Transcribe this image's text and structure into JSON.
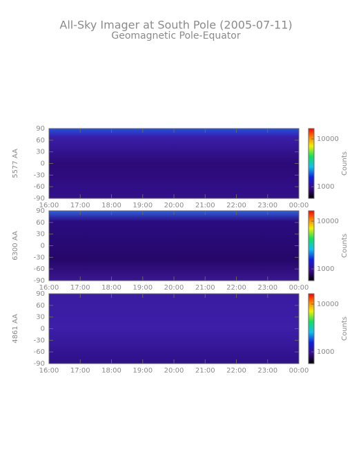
{
  "title": "All-Sky Imager at South Pole (2005-07-11)",
  "subtitle": "Geomagnetic Pole-Equator",
  "chart_data": [
    {
      "type": "heatmap",
      "ylabel": "5577 AA",
      "colorbar_label": "Counts",
      "xlim": [
        16,
        24
      ],
      "xticks": [
        {
          "value": 16,
          "label": "16:00"
        },
        {
          "value": 17,
          "label": "17:00"
        },
        {
          "value": 18,
          "label": "18:00"
        },
        {
          "value": 19,
          "label": "19:00"
        },
        {
          "value": 20,
          "label": "20:00"
        },
        {
          "value": 21,
          "label": "21:00"
        },
        {
          "value": 22,
          "label": "22:00"
        },
        {
          "value": 23,
          "label": "23:00"
        },
        {
          "value": 24,
          "label": "00:00"
        }
      ],
      "ylim": [
        -90,
        90
      ],
      "yticks": [
        -90,
        -60,
        -30,
        0,
        30,
        60,
        90
      ],
      "clim": [
        570,
        16500
      ],
      "cticks": [
        1000,
        10000
      ],
      "color_scale": "log"
    },
    {
      "type": "heatmap",
      "ylabel": "6300 AA",
      "colorbar_label": "Counts",
      "xlim": [
        16,
        24
      ],
      "xticks": [
        {
          "value": 16,
          "label": "16:00"
        },
        {
          "value": 17,
          "label": "17:00"
        },
        {
          "value": 18,
          "label": "18:00"
        },
        {
          "value": 19,
          "label": "19:00"
        },
        {
          "value": 20,
          "label": "20:00"
        },
        {
          "value": 21,
          "label": "21:00"
        },
        {
          "value": 22,
          "label": "22:00"
        },
        {
          "value": 23,
          "label": "23:00"
        },
        {
          "value": 24,
          "label": "00:00"
        }
      ],
      "ylim": [
        -90,
        90
      ],
      "yticks": [
        -90,
        -60,
        -30,
        0,
        30,
        60,
        90
      ],
      "clim": [
        570,
        16500
      ],
      "cticks": [
        1000,
        10000
      ],
      "color_scale": "log"
    },
    {
      "type": "heatmap",
      "ylabel": "4861 AA",
      "colorbar_label": "Counts",
      "xlim": [
        16,
        24
      ],
      "xticks": [
        {
          "value": 16,
          "label": "16:00"
        },
        {
          "value": 17,
          "label": "17:00"
        },
        {
          "value": 18,
          "label": "18:00"
        },
        {
          "value": 19,
          "label": "19:00"
        },
        {
          "value": 20,
          "label": "20:00"
        },
        {
          "value": 21,
          "label": "21:00"
        },
        {
          "value": 22,
          "label": "22:00"
        },
        {
          "value": 23,
          "label": "23:00"
        },
        {
          "value": 24,
          "label": "00:00"
        }
      ],
      "ylim": [
        -90,
        90
      ],
      "yticks": [
        -90,
        -60,
        -30,
        0,
        30,
        60,
        90
      ],
      "clim": [
        570,
        16500
      ],
      "cticks": [
        1000,
        10000
      ],
      "color_scale": "log"
    }
  ]
}
